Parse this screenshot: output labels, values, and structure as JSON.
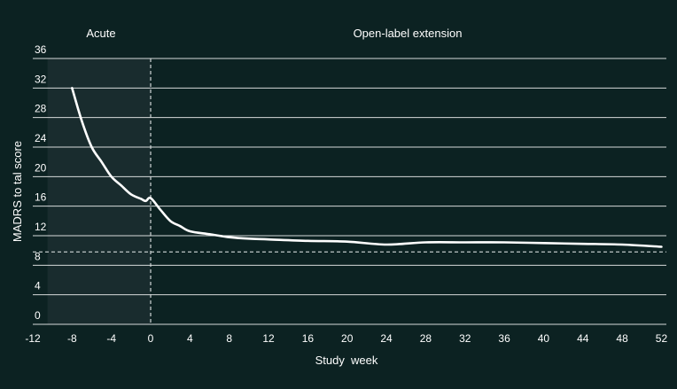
{
  "chart_data": {
    "type": "line",
    "title": "",
    "xlabel": "Study  week",
    "ylabel": "MADRS to tal score",
    "xlim": [
      -12,
      52.5
    ],
    "ylim": [
      0,
      36
    ],
    "x_ticks": [
      -12,
      -8,
      -4,
      0,
      4,
      8,
      12,
      16,
      20,
      24,
      28,
      32,
      36,
      40,
      44,
      48,
      52
    ],
    "y_ticks": [
      0,
      4,
      8,
      12,
      16,
      20,
      24,
      28,
      32,
      36
    ],
    "grid": "horizontal",
    "phases": [
      {
        "label": "Acute",
        "x_range": [
          -10.5,
          0
        ]
      },
      {
        "label": "Open-label extension",
        "x_range": [
          0,
          52.5
        ]
      }
    ],
    "phase_divider_x": 0,
    "reference_line_y": 9.8,
    "series": [
      {
        "name": "",
        "x": [
          -8,
          -7,
          -6,
          -5,
          -4,
          -3,
          -2,
          -1,
          -0.5,
          0,
          1,
          2,
          3,
          4,
          6,
          8,
          10,
          12,
          16,
          20,
          24,
          28,
          32,
          36,
          40,
          44,
          48,
          52
        ],
        "y": [
          32.0,
          27.5,
          24.0,
          22.0,
          20.0,
          18.8,
          17.6,
          17.0,
          16.7,
          17.1,
          15.5,
          14.0,
          13.3,
          12.6,
          12.2,
          11.8,
          11.6,
          11.5,
          11.3,
          11.2,
          10.8,
          11.1,
          11.1,
          11.1,
          11.0,
          10.9,
          10.8,
          10.5
        ]
      }
    ],
    "colors": {
      "background": "#0c2222",
      "acute_shade": "#192c2e",
      "grid": "#d6dada",
      "line": "#ffffff"
    }
  }
}
